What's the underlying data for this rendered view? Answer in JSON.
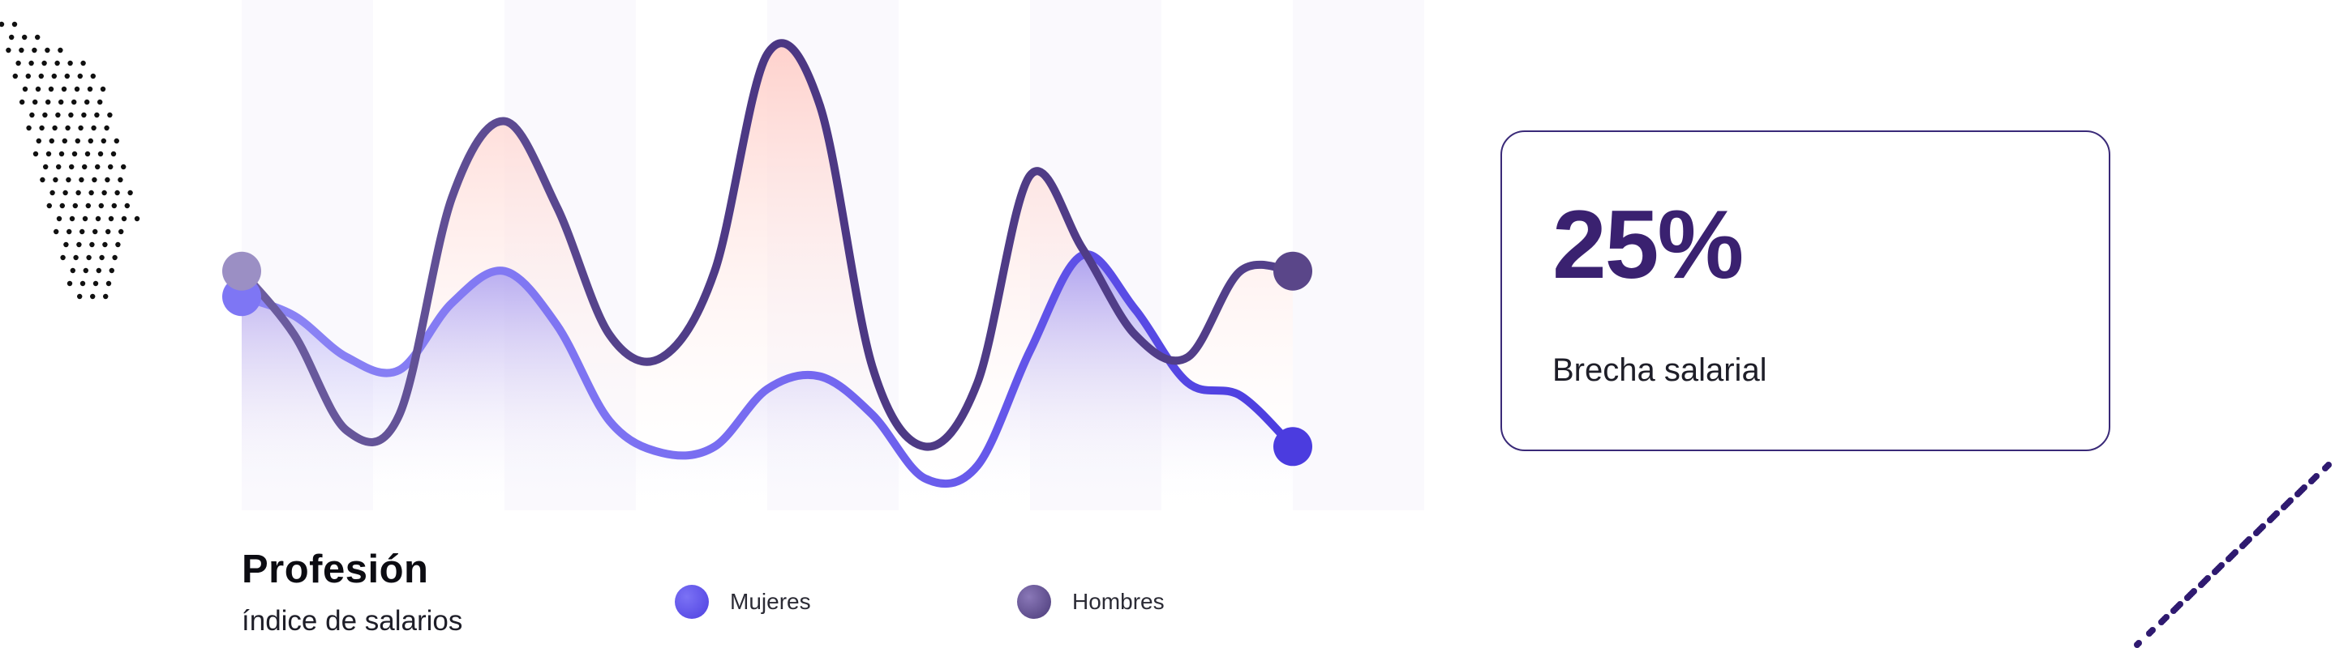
{
  "colors": {
    "mujeres": "#5648e6",
    "hombres": "#5b4684",
    "accent_dark": "#3a2170",
    "fill_top": "#ffd8d4"
  },
  "chart_data": {
    "type": "line",
    "title": "Profesión",
    "subtitle": "índice de salarios",
    "x": [
      0,
      1,
      2,
      3,
      4,
      5,
      6,
      7,
      8,
      9,
      10,
      11,
      12,
      13,
      14,
      15,
      16,
      17,
      18,
      19,
      20
    ],
    "series": [
      {
        "name": "Mujeres",
        "color": "#5648e6",
        "values": [
          57,
          51,
          38,
          34,
          55,
          65,
          48,
          18,
          8,
          10,
          28,
          32,
          20,
          0,
          4,
          40,
          70,
          53,
          30,
          26,
          10
        ]
      },
      {
        "name": "Hombres",
        "color": "#5b4684",
        "values": [
          65,
          45,
          15,
          20,
          88,
          112,
          85,
          45,
          38,
          65,
          133,
          117,
          35,
          10,
          30,
          95,
          72,
          45,
          38,
          65,
          65
        ]
      }
    ],
    "ylim": [
      -10,
      150
    ],
    "legend_position": "bottom",
    "grid": false
  },
  "stat": {
    "value": "25%",
    "label": "Brecha salarial"
  }
}
